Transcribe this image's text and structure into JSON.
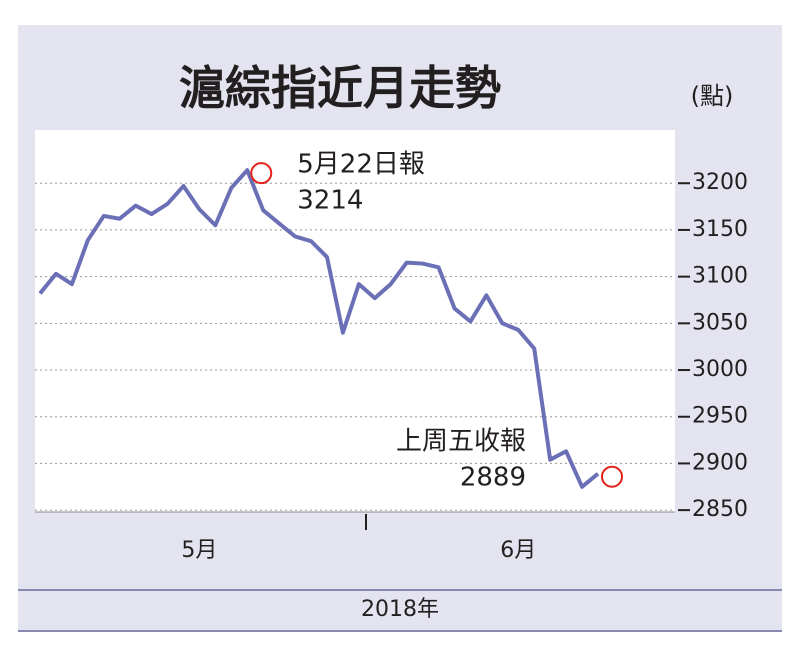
{
  "chart_data": {
    "type": "line",
    "title": "滬綜指近月走勢",
    "y_unit": "(點)",
    "x_label": "2018年",
    "categories": [
      null,
      null,
      null,
      null,
      null,
      null,
      null,
      null,
      null,
      null,
      "5月",
      null,
      null,
      null,
      null,
      null,
      null,
      null,
      null,
      null,
      null,
      null,
      null,
      null,
      null,
      null,
      null,
      null,
      null,
      null,
      "6月",
      null,
      null,
      null,
      null,
      null
    ],
    "series": [
      {
        "color": "#6b70b6",
        "values": [
          3082,
          3103,
          3092,
          3139,
          3165,
          3162,
          3176,
          3167,
          3178,
          3197,
          3172,
          3155,
          3195,
          3214,
          3171,
          3157,
          3143,
          3138,
          3121,
          3040,
          3092,
          3077,
          3092,
          3115,
          3114,
          3110,
          3066,
          3052,
          3080,
          3050,
          3043,
          3023,
          2904,
          2913,
          2875,
          2889
        ]
      }
    ],
    "annotations": [
      {
        "index": 13,
        "lines": [
          "5月22日報",
          "3214"
        ]
      },
      {
        "index": 35,
        "lines": [
          "上周五收報",
          "2889"
        ]
      }
    ],
    "ylim": [
      2848,
      3257
    ],
    "yticks": [
      2850,
      2900,
      2950,
      3000,
      3050,
      3100,
      3150,
      3200
    ],
    "grid": true
  }
}
